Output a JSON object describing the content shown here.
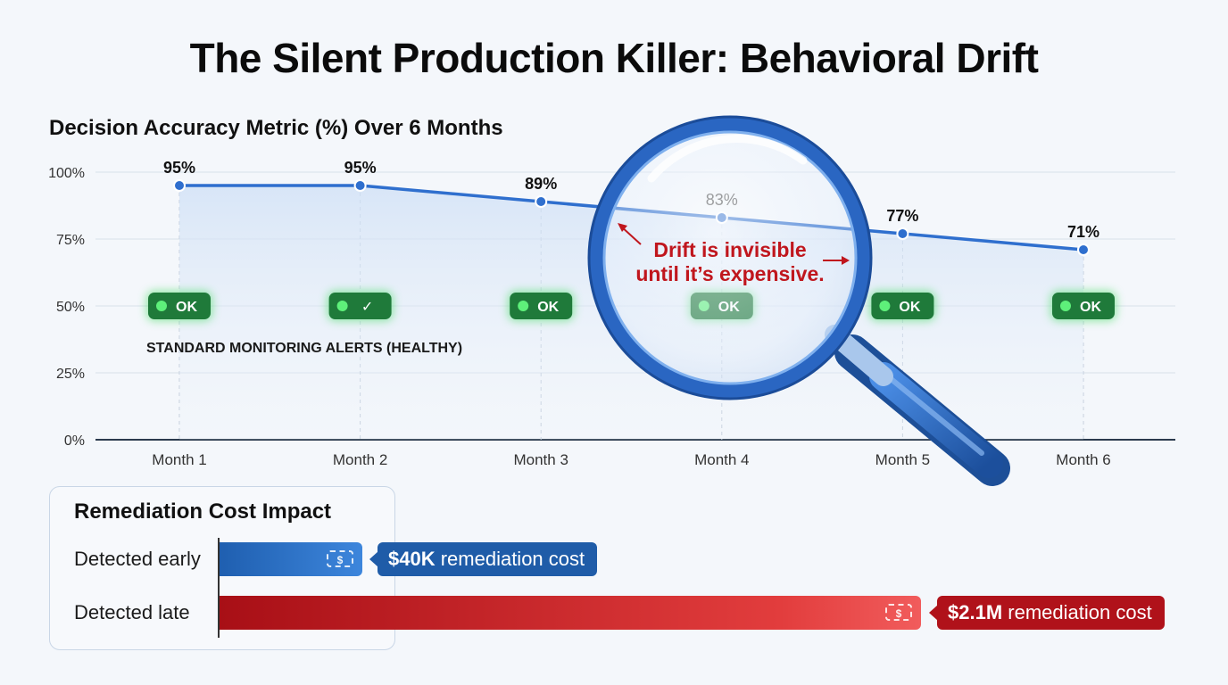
{
  "title": "The Silent Production Killer: Behavioral Drift",
  "chart_data": {
    "type": "line",
    "title": "Decision Accuracy Metric (%) Over 6 Months",
    "categories": [
      "Month 1",
      "Month 2",
      "Month 3",
      "Month 4",
      "Month 5",
      "Month 6"
    ],
    "series": [
      {
        "values": [
          95,
          95,
          89,
          83,
          77,
          71
        ]
      }
    ],
    "data_labels": [
      "95%",
      "95%",
      "89%",
      "83%",
      "77%",
      "71%"
    ],
    "y_ticks": [
      "0%",
      "25%",
      "50%",
      "75%",
      "100%"
    ],
    "ylim": [
      0,
      100
    ],
    "grid": true,
    "line_color": "#2f6fce",
    "alerts": {
      "caption": "STANDARD MONITORING ALERTS (HEALTHY)",
      "badges": [
        "OK",
        "✓",
        "OK",
        "OK",
        "OK",
        "OK"
      ],
      "badge_color": "#1f7a3a",
      "dot_color": "#5ef07a"
    },
    "annotation": {
      "line1": "Drift is invisible",
      "line2": "until it’s expensive.",
      "color": "#c0161d",
      "icon": "magnifying-glass-icon"
    }
  },
  "cost": {
    "title": "Remediation Cost Impact",
    "rows": [
      {
        "label": "Detected early",
        "amount": "$40K",
        "suffix": " remediation cost",
        "value_usd": 40000,
        "color": "#1f5ca8",
        "icon": "money-icon"
      },
      {
        "label": "Detected late",
        "amount": "$2.1M",
        "suffix": " remediation cost",
        "value_usd": 2100000,
        "color": "#b0121a",
        "icon": "money-icon"
      }
    ]
  }
}
